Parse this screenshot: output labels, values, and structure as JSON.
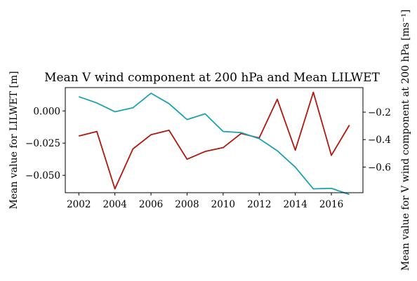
{
  "chart_data": {
    "type": "line",
    "title": "Mean V wind component at 200 hPa and Mean LILWET",
    "xlabel": "",
    "ylabel_left": "Mean value for LILWET [m]",
    "ylabel_right": "Mean value for V wind component at 200 hPa [ms⁻¹]",
    "x": [
      2002,
      2003,
      2004,
      2005,
      2006,
      2007,
      2008,
      2009,
      2010,
      2011,
      2012,
      2013,
      2014,
      2015,
      2016,
      2017
    ],
    "xlim": [
      2001.25,
      2017.75
    ],
    "x_ticks": [
      2002,
      2004,
      2006,
      2008,
      2010,
      2012,
      2014,
      2016
    ],
    "series": [
      {
        "axis": "left",
        "color": "#b2160d",
        "values": [
          -0.0195,
          -0.016,
          -0.0605,
          -0.0295,
          -0.0185,
          -0.015,
          -0.0375,
          -0.0315,
          -0.0285,
          -0.0175,
          -0.021,
          0.009,
          -0.0305,
          0.0145,
          -0.0345,
          -0.011
        ]
      },
      {
        "axis": "right",
        "color": "#1ba2b0",
        "values": [
          -0.087,
          -0.133,
          -0.197,
          -0.168,
          -0.062,
          -0.138,
          -0.254,
          -0.212,
          -0.341,
          -0.349,
          -0.393,
          -0.481,
          -0.601,
          -0.759,
          -0.755,
          -0.8
        ]
      }
    ],
    "ylim_left": [
      -0.0635,
      0.0181
    ],
    "yticks_left": [
      -0.05,
      -0.025,
      0.0
    ],
    "ytick_labels_left": [
      "−0.050",
      "−0.025",
      "0.000"
    ],
    "ylim_right": [
      -0.787,
      -0.021
    ],
    "yticks_right": [
      -0.6,
      -0.4,
      -0.2
    ],
    "ytick_labels_right": [
      "−0.6",
      "−0.4",
      "−0.2"
    ],
    "grid": false,
    "legend": "none"
  }
}
